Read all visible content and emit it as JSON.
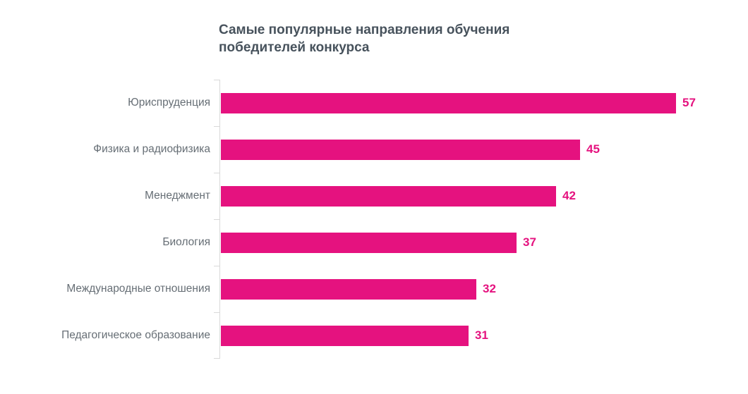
{
  "chart_data": {
    "type": "bar",
    "orientation": "horizontal",
    "title": "Самые популярные направления обучения победителей конкурса",
    "categories": [
      "Юриспруденция",
      "Физика и радиофизика",
      "Менеджмент",
      "Биология",
      "Международные отношения",
      "Педагогическое образование"
    ],
    "values": [
      57,
      45,
      42,
      37,
      32,
      31
    ],
    "xlabel": "",
    "ylabel": "",
    "xlim": [
      0,
      57
    ],
    "value_labels_shown": true,
    "grid": false,
    "legend": "none",
    "colors": {
      "bar": "#e5127f",
      "value_label": "#e5127f",
      "title": "#47525c",
      "category_label": "#666e75",
      "axis": "#d9d9d9",
      "background": "#ffffff"
    }
  }
}
